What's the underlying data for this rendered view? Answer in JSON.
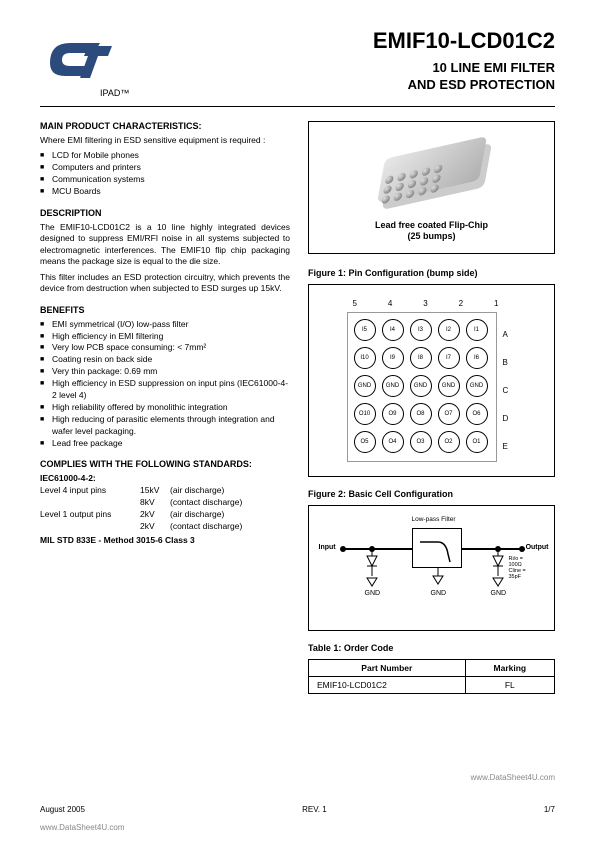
{
  "header": {
    "ipad": "IPAD™",
    "partNumber": "EMIF10-LCD01C2",
    "subtitle1": "10 LINE EMI FILTER",
    "subtitle2": "AND ESD PROTECTION"
  },
  "mainChar": {
    "title": "MAIN PRODUCT CHARACTERISTICS:",
    "intro": "Where EMI filtering in ESD sensitive equipment is required :",
    "items": [
      "LCD for Mobile phones",
      "Computers and printers",
      "Communication systems",
      "MCU Boards"
    ]
  },
  "description": {
    "title": "DESCRIPTION",
    "p1": "The EMIF10-LCD01C2 is a 10 line highly integrated devices designed to suppress EMI/RFI noise in all systems subjected to electromagnetic interferences. The EMIF10 flip chip packaging means the package size is equal to the die size.",
    "p2": "This filter includes an ESD protection circuitry, which prevents the device from destruction when subjected to ESD surges up 15kV."
  },
  "benefits": {
    "title": "BENEFITS",
    "items": [
      "EMI symmetrical  (I/O) low-pass filter",
      "High efficiency in EMI filtering",
      "Very low PCB space consuming: < 7mm²",
      "Coating resin on back side",
      "Very thin package: 0.69 mm",
      "High efficiency in ESD suppression on input pins (IEC61000-4-2 level 4)",
      "High reliability offered by monolithic integration",
      "High reducing of parasitic elements through integration and wafer level packaging.",
      "Lead free package"
    ]
  },
  "standards": {
    "title": "COMPLIES WITH THE FOLLOWING STANDARDS:",
    "iec": "IEC61000-4-2:",
    "rows": [
      {
        "c1": "Level 4 input pins",
        "c2": "15kV",
        "c3": "(air discharge)"
      },
      {
        "c1": "",
        "c2": "8kV",
        "c3": "(contact discharge)"
      },
      {
        "c1": "Level 1 output pins",
        "c2": "2kV",
        "c3": "(air discharge)"
      },
      {
        "c1": "",
        "c2": "2kV",
        "c3": "(contact discharge)"
      }
    ],
    "mil": "MIL STD 833E - Method 3015-6 Class 3"
  },
  "chip": {
    "caption1": "Lead free coated Flip-Chip",
    "caption2": "(25 bumps)"
  },
  "fig1": {
    "title": "Figure 1: Pin Configuration (bump side)",
    "colHeaders": [
      "5",
      "4",
      "3",
      "2",
      "1"
    ],
    "rowLabels": [
      "A",
      "B",
      "C",
      "D",
      "E"
    ],
    "cells": [
      [
        "I5",
        "I4",
        "I3",
        "I2",
        "I1"
      ],
      [
        "I10",
        "I9",
        "I8",
        "I7",
        "I6"
      ],
      [
        "GND",
        "GND",
        "GND",
        "GND",
        "GND"
      ],
      [
        "O10",
        "O9",
        "O8",
        "O7",
        "O6"
      ],
      [
        "O5",
        "O4",
        "O3",
        "O2",
        "O1"
      ]
    ]
  },
  "fig2": {
    "title": "Figure 2: Basic Cell Configuration",
    "filterLabel": "Low-pass Filter",
    "inputLabel": "Input",
    "outputLabel": "Output",
    "gnd": "GND",
    "params": "Ri/o = 100Ω\nCline = 35pF"
  },
  "table1": {
    "title": "Table 1: Order Code",
    "headers": [
      "Part Number",
      "Marking"
    ],
    "rows": [
      [
        "EMIF10-LCD01C2",
        "FL"
      ]
    ]
  },
  "footer": {
    "date": "August 2005",
    "rev": "REV. 1",
    "page": "1/7"
  },
  "watermark": "www.DataSheet4U.com",
  "colors": {
    "text": "#000000",
    "bg": "#ffffff",
    "chipLight": "#e8e8e8",
    "chipDark": "#b0b0b0"
  }
}
